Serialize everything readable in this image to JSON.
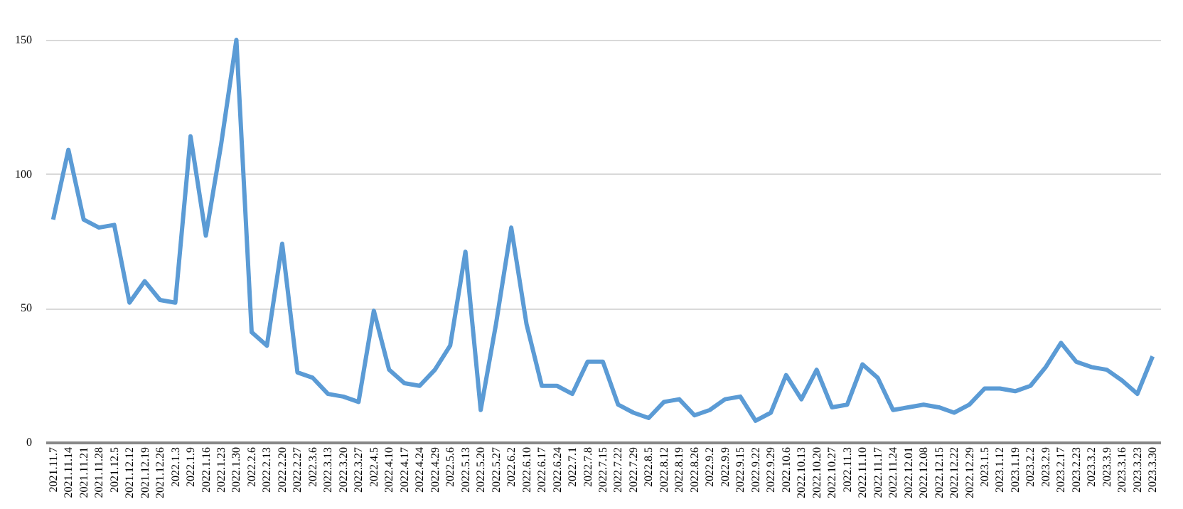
{
  "chart_data": {
    "type": "line",
    "categories": [
      "2021.11.7",
      "2021.11.14",
      "2021.11.21",
      "2021.11.28",
      "2021.12.5",
      "2021.12.12",
      "2021.12.19",
      "2021.12.26",
      "2022.1.3",
      "2022.1.9",
      "2022.1.16",
      "2022.1.23",
      "2022.1.30",
      "2022.2.6",
      "2022.2.13",
      "2022.2.20",
      "2022.2.27",
      "2022.3.6",
      "2022.3.13",
      "2022.3.20",
      "2022.3.27",
      "2022.4.5",
      "2022.4.10",
      "2022.4.17",
      "2022.4.24",
      "2022.4.29",
      "2022.5.6",
      "2022.5.13",
      "2022.5.20",
      "2022.5.27",
      "2022.6.2",
      "2022.6.10",
      "2022.6.17",
      "2022.6.24",
      "2022.7.1",
      "2022.7.8",
      "2022.7.15",
      "2022.7.22",
      "2022.7.29",
      "2022.8.5",
      "2022.8.12",
      "2022.8.19",
      "2022.8.26",
      "2022.9.2",
      "2022.9.9",
      "2022.9.15",
      "2022.9.22",
      "2022.9.29",
      "2022.10.6",
      "2022.10.13",
      "2022.10.20",
      "2022.10.27",
      "2022.11.3",
      "2022.11.10",
      "2022.11.17",
      "2022.11.24",
      "2022.12.01",
      "2022.12.08",
      "2022.12.15",
      "2022.12.22",
      "2022.12.29",
      "2023.1.5",
      "2023.1.12",
      "2023.1.19",
      "2023.2.2",
      "2023.2.9",
      "2023.2.17",
      "2023.2.23",
      "2023.3.2",
      "2023.3.9",
      "2023.3.16",
      "2023.3.23",
      "2023.3.30"
    ],
    "series": [
      {
        "color": "#5b9bd5",
        "values": [
          83,
          109,
          83,
          80,
          81,
          52,
          60,
          53,
          52,
          114,
          77,
          111,
          150,
          41,
          36,
          74,
          26,
          24,
          18,
          17,
          15,
          49,
          27,
          22,
          21,
          27,
          36,
          71,
          12,
          44,
          80,
          44,
          21,
          21,
          18,
          30,
          30,
          14,
          11,
          9,
          15,
          16,
          10,
          12,
          16,
          17,
          8,
          11,
          25,
          16,
          27,
          13,
          14,
          29,
          24,
          12,
          13,
          14,
          13,
          11,
          14,
          20,
          20,
          19,
          21,
          28,
          37,
          30,
          28,
          27,
          23,
          18,
          32
        ]
      }
    ],
    "ylim": [
      0,
      150
    ],
    "yticks": [
      0,
      50,
      100,
      150
    ],
    "grid": "y",
    "legend": false,
    "marker": "none",
    "line_style": "solid"
  }
}
